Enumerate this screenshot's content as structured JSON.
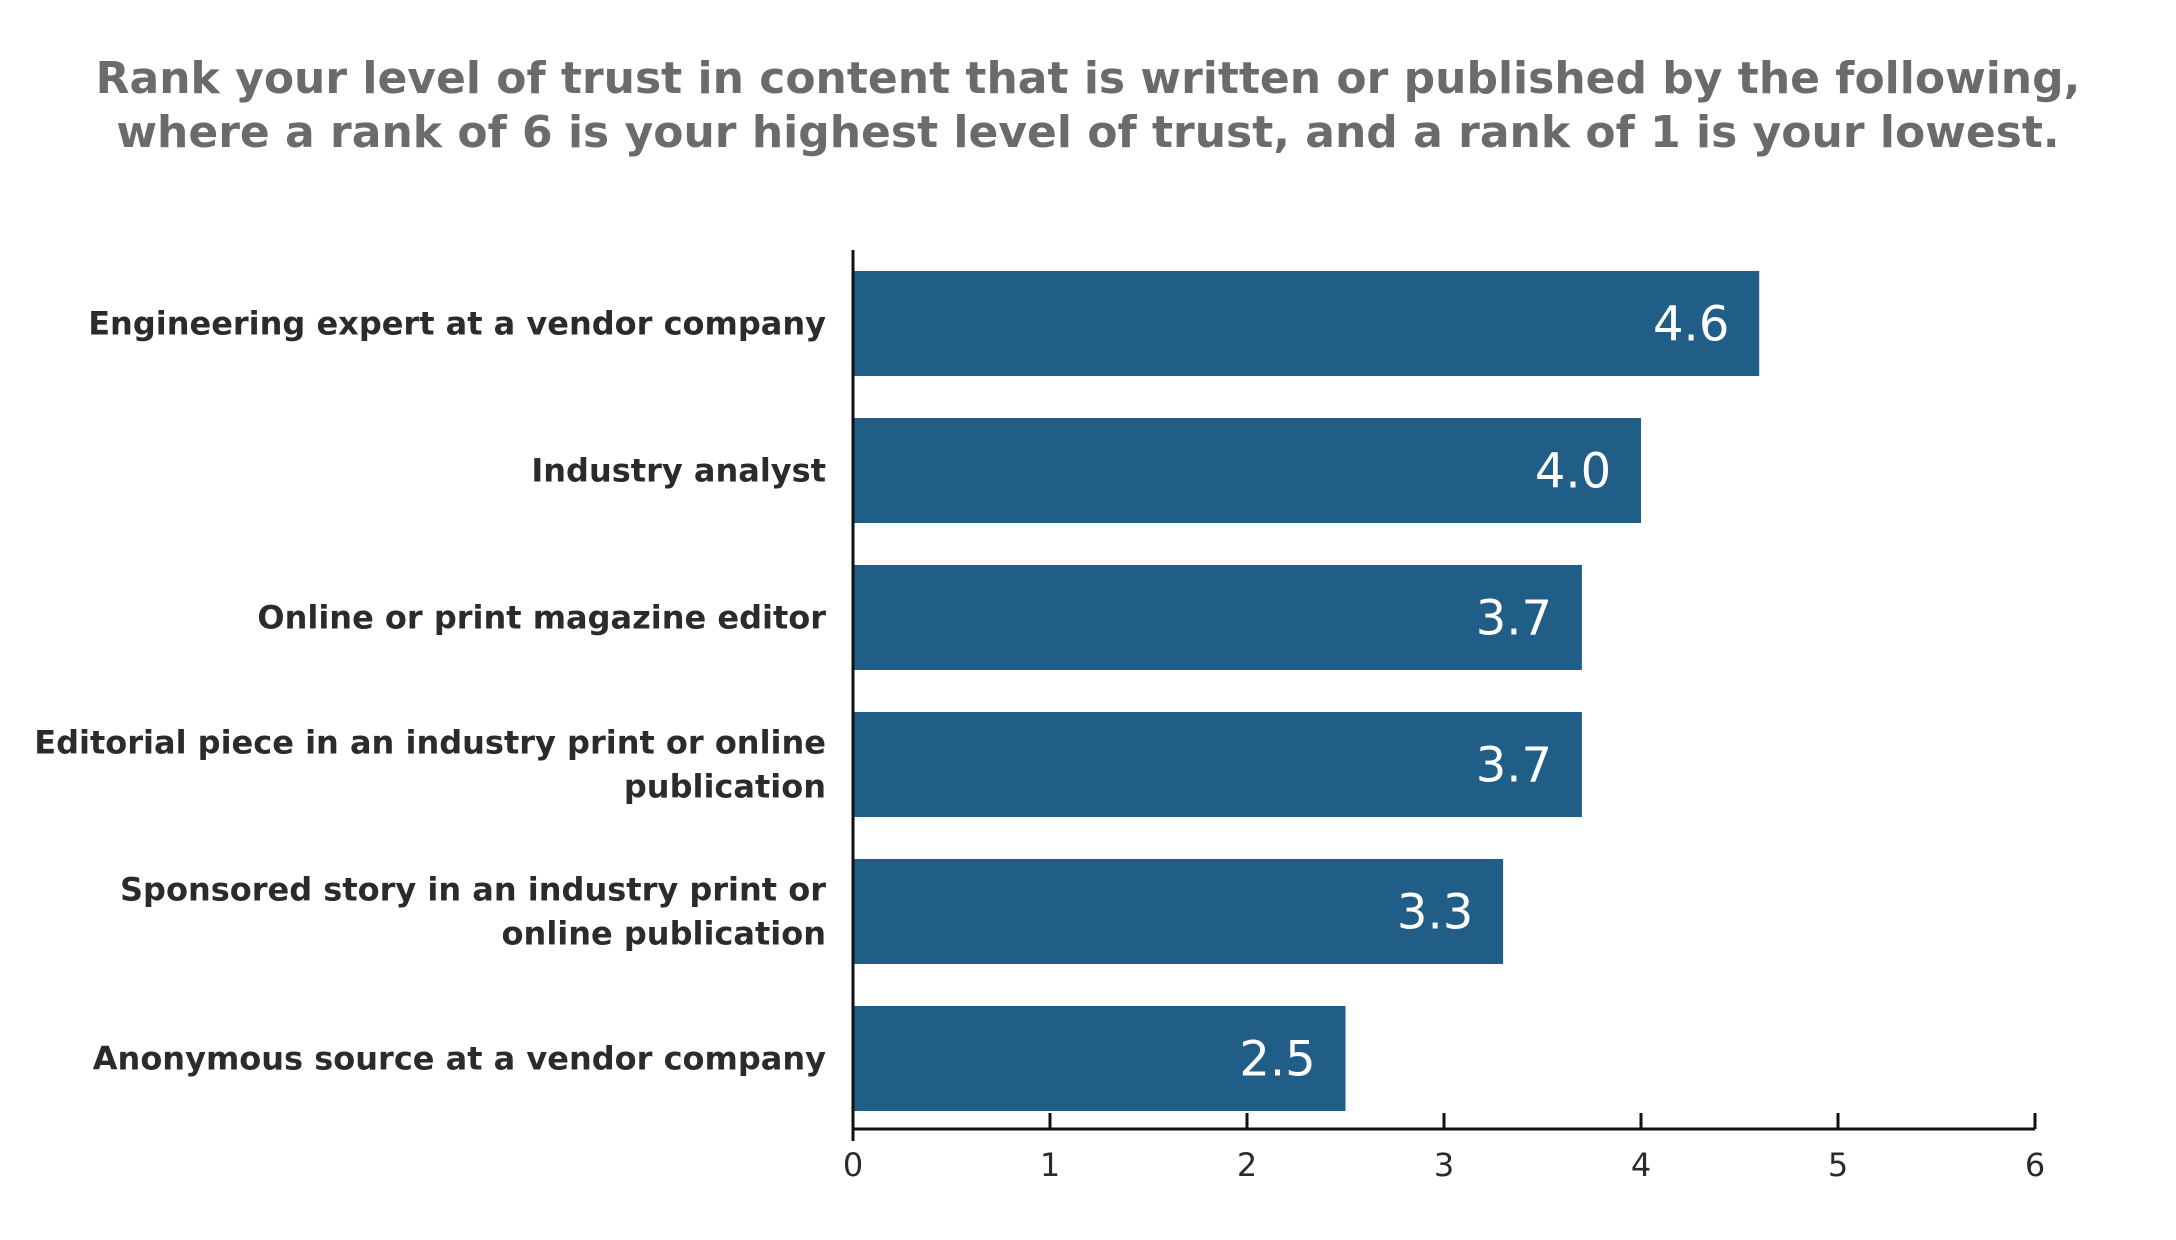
{
  "chart_data": {
    "type": "bar",
    "orientation": "horizontal",
    "title_lines": [
      "Rank your level of trust in content that is written or published by the following,",
      "where a rank of 6 is your highest level of trust, and a rank of 1 is your lowest."
    ],
    "categories": [
      [
        "Engineering expert at a vendor company"
      ],
      [
        "Industry analyst"
      ],
      [
        "Online or print magazine editor"
      ],
      [
        "Editorial piece in an industry print or online",
        "publication"
      ],
      [
        "Sponsored story in an industry print or",
        "online publication"
      ],
      [
        "Anonymous source at a vendor company"
      ]
    ],
    "values": [
      4.6,
      4.0,
      3.7,
      3.7,
      3.3,
      2.5
    ],
    "value_labels": [
      "4.6",
      "4.0",
      "3.7",
      "3.7",
      "3.3",
      "2.5"
    ],
    "xlim": [
      0,
      6
    ],
    "xticks": [
      "0",
      "1",
      "2",
      "3",
      "4",
      "5",
      "6"
    ],
    "grid": false,
    "bar_color": "#215e87",
    "axis_color": "#111111"
  }
}
